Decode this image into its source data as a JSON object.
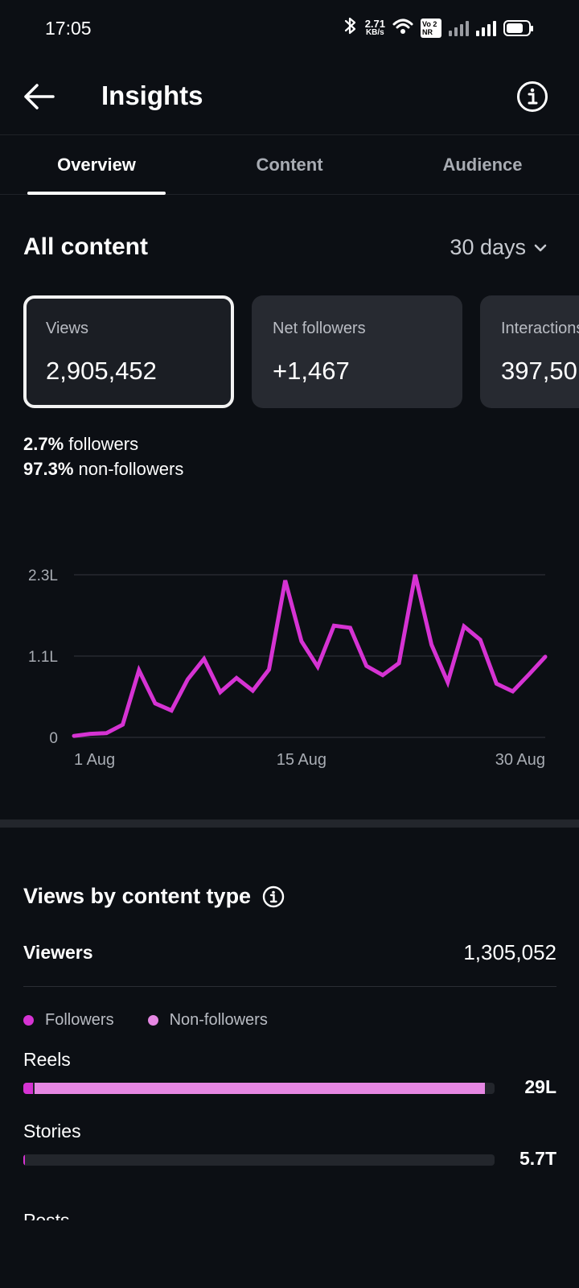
{
  "status_bar": {
    "time": "17:05",
    "net_speed_value": "2.71",
    "net_speed_unit": "KB/s",
    "volte_top": "Vo 2",
    "volte_bottom": "NR",
    "icons": [
      "bluetooth-icon",
      "wifi-icon",
      "signal-icon",
      "battery-icon"
    ]
  },
  "header": {
    "title": "Insights",
    "back_icon": "arrow-left-icon",
    "info_icon": "info-icon"
  },
  "tabs": [
    {
      "label": "Overview",
      "active": true
    },
    {
      "label": "Content",
      "active": false
    },
    {
      "label": "Audience",
      "active": false
    }
  ],
  "section": {
    "title": "All content",
    "period": "30 days"
  },
  "metric_cards": [
    {
      "label": "Views",
      "value": "2,905,452",
      "selected": true
    },
    {
      "label": "Net followers",
      "value": "+1,467",
      "selected": false
    },
    {
      "label": "Interactions",
      "value": "397,50",
      "selected": false
    }
  ],
  "audience_split": {
    "followers_pct": "2.7%",
    "followers_label": "followers",
    "non_followers_pct": "97.3%",
    "non_followers_label": "non-followers"
  },
  "chart_data": {
    "type": "line",
    "color": "#d633d3",
    "y_tick_labels": [
      "0",
      "1.1L",
      "2.3L"
    ],
    "y_tick_values": [
      0,
      1.15,
      2.3
    ],
    "ylim": [
      0,
      2.3
    ],
    "x_tick_labels": [
      "1 Aug",
      "15 Aug",
      "30 Aug"
    ],
    "x_tick_days": [
      1,
      15,
      30
    ],
    "grid": true,
    "series": [
      {
        "x": [
          1,
          2,
          3,
          4,
          5,
          6,
          7,
          8,
          9,
          10,
          11,
          12,
          13,
          14,
          15,
          16,
          17,
          18,
          19,
          20,
          21,
          22,
          23,
          24,
          25,
          26,
          27,
          28,
          29,
          30
        ],
        "values": [
          0.02,
          0.05,
          0.06,
          0.18,
          0.95,
          0.48,
          0.38,
          0.82,
          1.11,
          0.64,
          0.84,
          0.66,
          0.96,
          2.22,
          1.36,
          1.0,
          1.58,
          1.55,
          1.01,
          0.88,
          1.05,
          2.3,
          1.31,
          0.78,
          1.57,
          1.38,
          0.76,
          0.65,
          0.89,
          1.14
        ]
      }
    ]
  },
  "views_by_content_type": {
    "title": "Views by content type",
    "info_icon": "info-icon",
    "viewers_label": "Viewers",
    "viewers_value": "1,305,052",
    "legend": [
      {
        "label": "Followers",
        "color": "#d633d3"
      },
      {
        "label": "Non-followers",
        "color": "#e687e3"
      }
    ],
    "types": [
      {
        "name": "Reels",
        "value": "29L",
        "followers_fraction": 0.02,
        "non_followers_fraction": 0.98
      },
      {
        "name": "Stories",
        "value": "5.7T",
        "followers_fraction": 0.004,
        "non_followers_fraction": 0.0
      }
    ],
    "next_type_cut": "Posts"
  }
}
